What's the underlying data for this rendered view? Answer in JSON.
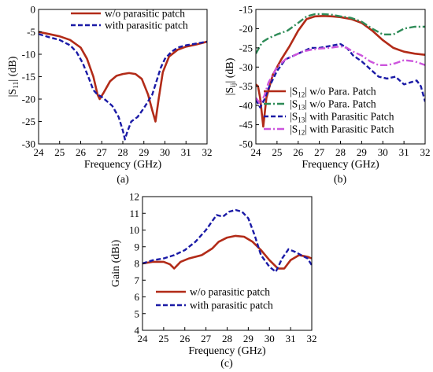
{
  "chart_data": [
    {
      "type": "line",
      "caption": "(a)",
      "xlabel": "Frequency (GHz)",
      "ylabel": "|S11| (dB)",
      "ylabel_main": "|S",
      "ylabel_sub": "11",
      "ylabel_tail": "| (dB)",
      "xlim": [
        24,
        32
      ],
      "ylim": [
        -30,
        0
      ],
      "xticks": [
        24,
        25,
        26,
        27,
        28,
        29,
        30,
        31,
        32
      ],
      "yticks": [
        0,
        -5,
        -10,
        -15,
        -20,
        -25,
        -30
      ],
      "grid": false,
      "legend_position": "top-right",
      "series": [
        {
          "name": "w/o parasitic patch",
          "color": "#b22b18",
          "style": "solid",
          "x": [
            24,
            24.5,
            25,
            25.5,
            26,
            26.3,
            26.6,
            26.8,
            26.9,
            27.1,
            27.4,
            27.7,
            28,
            28.3,
            28.6,
            28.9,
            29.2,
            29.4,
            29.55,
            29.7,
            29.9,
            30.2,
            30.6,
            31,
            31.5,
            32
          ],
          "y": [
            -5,
            -5.5,
            -6,
            -6.8,
            -8.5,
            -11,
            -15,
            -19,
            -20,
            -18.5,
            -16,
            -14.8,
            -14.4,
            -14.2,
            -14.4,
            -15.5,
            -19,
            -22.5,
            -25,
            -20,
            -14,
            -10.5,
            -9,
            -8.3,
            -7.8,
            -7.2
          ]
        },
        {
          "name": "with parasitic patch",
          "color": "#1a1aa6",
          "style": "dashed",
          "x": [
            24,
            24.5,
            25,
            25.5,
            25.8,
            26.1,
            26.4,
            26.6,
            26.8,
            27,
            27.2,
            27.5,
            27.8,
            28,
            28.1,
            28.2,
            28.4,
            28.7,
            29,
            29.2,
            29.4,
            29.6,
            29.8,
            30,
            30.3,
            30.6,
            31,
            31.5,
            32
          ],
          "y": [
            -5.5,
            -6.2,
            -6.8,
            -8,
            -9.5,
            -12,
            -15.5,
            -18,
            -19,
            -19.5,
            -20.3,
            -21.5,
            -24,
            -27,
            -29,
            -27.5,
            -25,
            -24,
            -22,
            -20.5,
            -19,
            -16,
            -13,
            -11,
            -9.5,
            -8.5,
            -8,
            -7.6,
            -7.2
          ]
        }
      ]
    },
    {
      "type": "line",
      "caption": "(b)",
      "xlabel": "Frequency (GHz)",
      "ylabel": "|Sij| (dB)",
      "ylabel_main": "|S",
      "ylabel_sub": "ij",
      "ylabel_tail": "| (dB)",
      "xlim": [
        24,
        32
      ],
      "ylim": [
        -50,
        -15
      ],
      "xticks": [
        24,
        25,
        26,
        27,
        28,
        29,
        30,
        31,
        32
      ],
      "yticks": [
        -15,
        -20,
        -25,
        -30,
        -35,
        -40,
        -45,
        -50
      ],
      "grid": false,
      "legend_position": "bottom-right",
      "series": [
        {
          "name": "|S12| w/o Para. Patch",
          "legend_main": "|S",
          "legend_sub": "12",
          "legend_tail": "| w/o Para. Patch",
          "color": "#b22b18",
          "style": "solid",
          "x": [
            24,
            24.1,
            24.2,
            24.3,
            24.35,
            24.5,
            24.8,
            25.2,
            25.6,
            26,
            26.4,
            26.8,
            27.2,
            27.6,
            28,
            28.5,
            29,
            29.5,
            30,
            30.5,
            31,
            31.5,
            32
          ],
          "y": [
            -34.5,
            -35,
            -38,
            -43,
            -45.5,
            -38,
            -32,
            -28,
            -24.5,
            -20.5,
            -17.5,
            -16.8,
            -16.7,
            -16.8,
            -17,
            -17.5,
            -18.5,
            -20.5,
            -23,
            -25,
            -26,
            -26.5,
            -26.8
          ]
        },
        {
          "name": "|S13| w/o Para. Patch",
          "legend_main": "|S",
          "legend_sub": "13",
          "legend_tail": "| w/o Para. Patch",
          "color": "#2e8b57",
          "style": "dashdot",
          "x": [
            24,
            24.3,
            24.6,
            25,
            25.5,
            26,
            26.4,
            26.8,
            27.2,
            27.6,
            28,
            28.5,
            29,
            29.5,
            30,
            30.5,
            31,
            31.5,
            32
          ],
          "y": [
            -26.5,
            -23.5,
            -22.5,
            -21.5,
            -20.5,
            -18.5,
            -16.8,
            -16.2,
            -16.2,
            -16.4,
            -16.8,
            -17.2,
            -18.2,
            -20,
            -21.5,
            -21.5,
            -20,
            -19.5,
            -19.5
          ]
        },
        {
          "name": "|S13| with Parasitic Patch",
          "legend_main": "|S",
          "legend_sub": "13",
          "legend_tail": "| with Parasitic Patch",
          "color": "#1a1aa6",
          "style": "dashed",
          "x": [
            24,
            24.2,
            24.4,
            24.6,
            25,
            25.4,
            25.8,
            26.2,
            26.6,
            27,
            27.5,
            28,
            28.3,
            28.6,
            29,
            29.4,
            29.8,
            30.2,
            30.6,
            31,
            31.3,
            31.6,
            31.8,
            32
          ],
          "y": [
            -38.5,
            -40.5,
            -38.5,
            -35.5,
            -31,
            -28,
            -27,
            -26,
            -25,
            -25,
            -24.5,
            -24,
            -25,
            -27,
            -28.5,
            -30.5,
            -32.5,
            -33,
            -32.5,
            -34.5,
            -34,
            -33.5,
            -35,
            -39
          ]
        },
        {
          "name": "|S12| with Parasitic Patch",
          "legend_main": "|S",
          "legend_sub": "12",
          "legend_tail": "| with Parasitic Patch",
          "color": "#cc55dd",
          "style": "dashdot",
          "x": [
            24,
            24.2,
            24.4,
            24.6,
            25,
            25.4,
            25.8,
            26.2,
            26.6,
            27,
            27.5,
            28,
            28.3,
            28.6,
            29,
            29.4,
            29.8,
            30.2,
            30.6,
            31,
            31.5,
            32
          ],
          "y": [
            -38,
            -39.5,
            -37.5,
            -34,
            -30,
            -28,
            -27,
            -26,
            -25.5,
            -25.2,
            -25,
            -24.6,
            -25,
            -26,
            -27,
            -28.5,
            -29.5,
            -29.5,
            -29,
            -28.2,
            -28.5,
            -29.5
          ]
        }
      ]
    },
    {
      "type": "line",
      "caption": "(c)",
      "xlabel": "Frequency (GHz)",
      "ylabel": "Gain (dBi)",
      "xlim": [
        24,
        32
      ],
      "ylim": [
        4,
        12
      ],
      "xticks": [
        24,
        25,
        26,
        27,
        28,
        29,
        30,
        31,
        32
      ],
      "yticks": [
        12,
        11,
        10,
        9,
        8,
        7,
        6,
        5,
        4
      ],
      "grid": false,
      "legend_position": "bottom-left",
      "series": [
        {
          "name": "w/o parasitic patch",
          "color": "#b22b18",
          "style": "solid",
          "x": [
            24,
            24.5,
            25,
            25.3,
            25.5,
            25.8,
            26.2,
            26.8,
            27.3,
            27.6,
            28,
            28.4,
            28.8,
            29.2,
            29.6,
            30,
            30.4,
            30.7,
            31,
            31.4,
            31.8,
            32
          ],
          "y": [
            8,
            8.1,
            8.1,
            7.95,
            7.7,
            8.1,
            8.3,
            8.5,
            8.9,
            9.3,
            9.55,
            9.65,
            9.6,
            9.3,
            8.8,
            8.2,
            7.7,
            7.7,
            8.2,
            8.5,
            8.4,
            8.3
          ]
        },
        {
          "name": "with parasitic patch",
          "color": "#1a1aa6",
          "style": "dashed",
          "x": [
            24,
            24.5,
            25,
            25.5,
            26,
            26.5,
            27,
            27.5,
            27.8,
            28.1,
            28.4,
            28.7,
            29,
            29.3,
            29.6,
            30,
            30.3,
            30.6,
            30.9,
            31.2,
            31.5,
            31.8,
            32
          ],
          "y": [
            8,
            8.2,
            8.3,
            8.5,
            8.8,
            9.3,
            10,
            10.9,
            10.8,
            11.1,
            11.2,
            11.1,
            10.7,
            9.7,
            8.5,
            7.8,
            7.5,
            8.3,
            8.85,
            8.7,
            8.5,
            8.3,
            7.9
          ]
        }
      ]
    }
  ]
}
